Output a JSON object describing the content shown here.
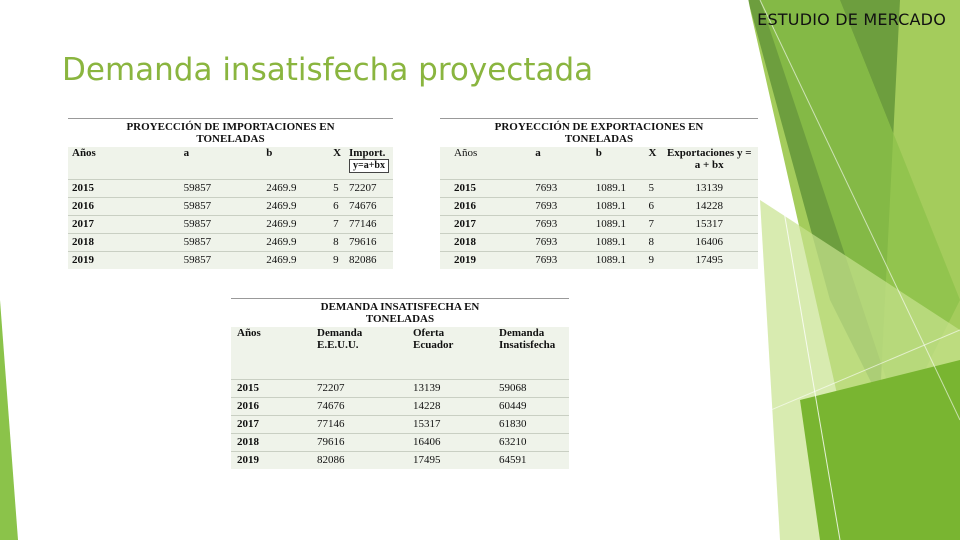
{
  "header": {
    "section_label": "ESTUDIO DE MERCADO"
  },
  "slide": {
    "title": "Demanda insatisfecha proyectada"
  },
  "imports_table": {
    "caption": "PROYECCIÓN DE IMPORTACIONES EN TONELADAS",
    "headers": [
      "Años",
      "a",
      "b",
      "X",
      "Import."
    ],
    "formula": "y=a+bx",
    "rows": [
      [
        "2015",
        "59857",
        "2469.9",
        "5",
        "72207"
      ],
      [
        "2016",
        "59857",
        "2469.9",
        "6",
        "74676"
      ],
      [
        "2017",
        "59857",
        "2469.9",
        "7",
        "77146"
      ],
      [
        "2018",
        "59857",
        "2469.9",
        "8",
        "79616"
      ],
      [
        "2019",
        "59857",
        "2469.9",
        "9",
        "82086"
      ]
    ]
  },
  "exports_table": {
    "caption": "PROYECCIÓN DE EXPORTACIONES EN TONELADAS",
    "headers": [
      "Años",
      "a",
      "b",
      "X",
      "Exportaciones y = a + bx"
    ],
    "rows": [
      [
        "2015",
        "7693",
        "1089.1",
        "5",
        "13139"
      ],
      [
        "2016",
        "7693",
        "1089.1",
        "6",
        "14228"
      ],
      [
        "2017",
        "7693",
        "1089.1",
        "7",
        "15317"
      ],
      [
        "2018",
        "7693",
        "1089.1",
        "8",
        "16406"
      ],
      [
        "2019",
        "7693",
        "1089.1",
        "9",
        "17495"
      ]
    ]
  },
  "demand_table": {
    "caption": "DEMANDA INSATISFECHA EN TONELADAS",
    "headers": [
      "Años",
      "Demanda E.E.U.U.",
      "Oferta Ecuador",
      "Demanda Insatisfecha"
    ],
    "rows": [
      [
        "2015",
        "72207",
        "13139",
        "59068"
      ],
      [
        "2016",
        "74676",
        "14228",
        "60449"
      ],
      [
        "2017",
        "77146",
        "15317",
        "61830"
      ],
      [
        "2018",
        "79616",
        "16406",
        "63210"
      ],
      [
        "2019",
        "82086",
        "17495",
        "64591"
      ]
    ]
  },
  "theme": {
    "accent": "#8ab53f",
    "table_bg": "#eff3ea"
  }
}
